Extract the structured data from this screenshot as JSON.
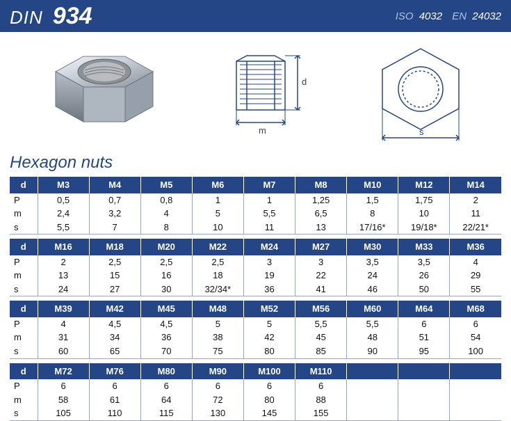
{
  "header": {
    "din_label": "DIN",
    "din_number": "934",
    "iso_prefix": "ISO",
    "iso_number": "4032",
    "en_prefix": "EN",
    "en_number": "24032",
    "bg_color": "#254686"
  },
  "section_title": "Hexagon nuts",
  "diagram": {
    "dim_d": "d",
    "dim_m": "m",
    "dim_s": "s",
    "stroke": "#254686"
  },
  "row_labels": [
    "P",
    "m",
    "s"
  ],
  "tables": [
    {
      "header": [
        "d",
        "M3",
        "M4",
        "M5",
        "M6",
        "M7",
        "M8",
        "M10",
        "M12",
        "M14"
      ],
      "rows": [
        [
          "0,5",
          "0,7",
          "0,8",
          "1",
          "1",
          "1,25",
          "1,5",
          "1,75",
          "2"
        ],
        [
          "2,4",
          "3,2",
          "4",
          "5",
          "5,5",
          "6,5",
          "8",
          "10",
          "11"
        ],
        [
          "5,5",
          "7",
          "8",
          "10",
          "11",
          "13",
          "17/16*",
          "19/18*",
          "22/21*"
        ]
      ]
    },
    {
      "header": [
        "d",
        "M16",
        "M18",
        "M20",
        "M22",
        "M24",
        "M27",
        "M30",
        "M33",
        "M36"
      ],
      "rows": [
        [
          "2",
          "2,5",
          "2,5",
          "2,5",
          "3",
          "3",
          "3,5",
          "3,5",
          "4"
        ],
        [
          "13",
          "15",
          "16",
          "18",
          "19",
          "22",
          "24",
          "26",
          "29"
        ],
        [
          "24",
          "27",
          "30",
          "32/34*",
          "36",
          "41",
          "46",
          "50",
          "55"
        ]
      ]
    },
    {
      "header": [
        "d",
        "M39",
        "M42",
        "M45",
        "M48",
        "M52",
        "M56",
        "M60",
        "M64",
        "M68"
      ],
      "rows": [
        [
          "4",
          "4,5",
          "4,5",
          "5",
          "5",
          "5,5",
          "5,5",
          "6",
          "6"
        ],
        [
          "31",
          "34",
          "36",
          "38",
          "42",
          "45",
          "48",
          "51",
          "54"
        ],
        [
          "60",
          "65",
          "70",
          "75",
          "80",
          "85",
          "90",
          "95",
          "100"
        ]
      ]
    },
    {
      "header": [
        "d",
        "M72",
        "M76",
        "M80",
        "M90",
        "M100",
        "M110",
        "",
        "",
        ""
      ],
      "rows": [
        [
          "6",
          "6",
          "6",
          "6",
          "6",
          "6",
          "",
          "",
          ""
        ],
        [
          "58",
          "61",
          "64",
          "72",
          "80",
          "88",
          "",
          "",
          ""
        ],
        [
          "105",
          "110",
          "115",
          "130",
          "145",
          "155",
          "",
          "",
          ""
        ]
      ]
    }
  ],
  "table_header_bg": "#254686",
  "table_border_color": "#9aa6b8"
}
